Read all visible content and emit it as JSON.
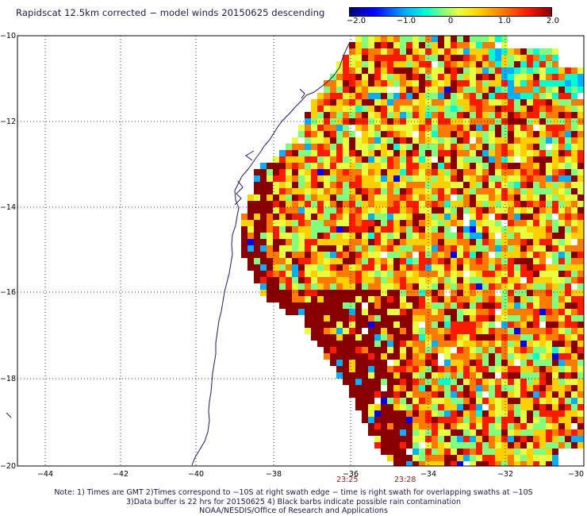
{
  "title": "Rapidscat 12.5km corrected − model winds 20150625 descending",
  "colorbar": {
    "ticks": [
      "−2.0",
      "−1.0",
      "0",
      "1.0",
      "2.0"
    ],
    "min": -2.0,
    "max": 2.0
  },
  "lat_labels": [
    "−10",
    "−12",
    "−14",
    "−16",
    "−18",
    "−20"
  ],
  "lon_labels": [
    "−44",
    "−42",
    "−40",
    "−38",
    "−36",
    "−34",
    "−32",
    "−30"
  ],
  "time_labels": [
    "23:25",
    "23:28"
  ],
  "notes": [
    "Note: 1) Times are GMT 2)Times correspond to −10S at right swath edge − time is right swath for overlapping swaths at −10S",
    "3)Data buffer is 22 hrs for 20150625 4) Black barbs indicate possible rain contamination",
    "NOAA/NESDIS/Office of Research and Applications"
  ]
}
